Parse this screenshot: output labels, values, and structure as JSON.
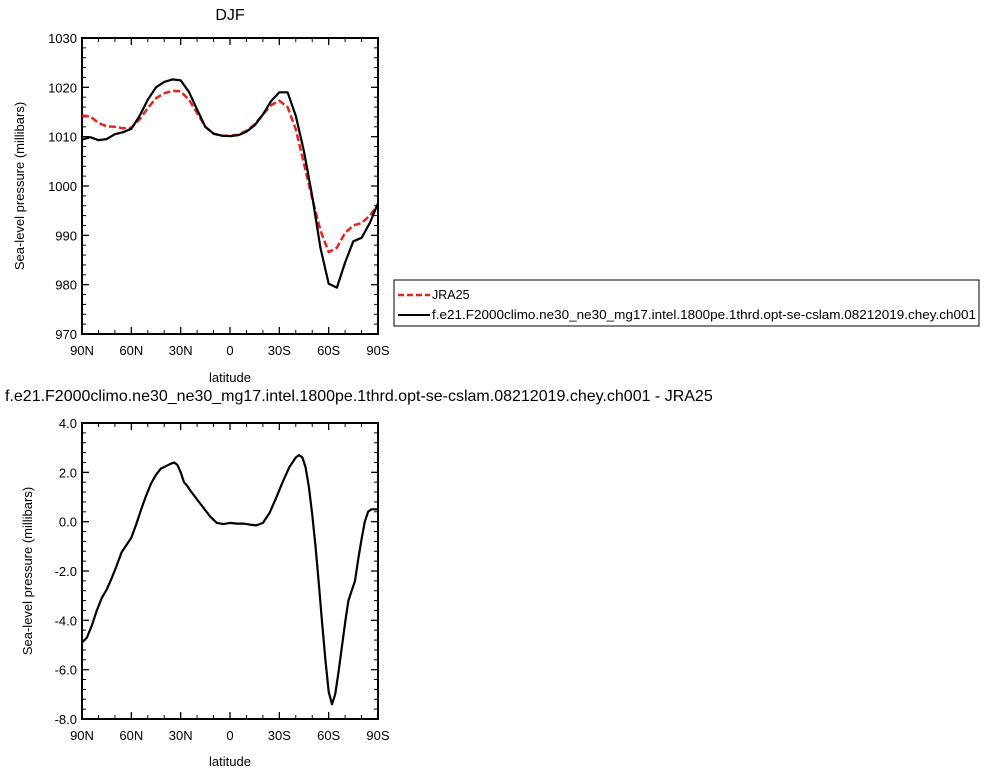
{
  "chart_data": [
    {
      "type": "line",
      "title": "DJF",
      "xlabel": "latitude",
      "ylabel": "Sea-level pressure (millibars)",
      "xlim": [
        90,
        -90
      ],
      "ylim": [
        970,
        1030
      ],
      "x_ticks": [
        90,
        60,
        30,
        0,
        -30,
        -60,
        -90
      ],
      "x_tick_labels": [
        "90N",
        "60N",
        "30N",
        "0",
        "30S",
        "60S",
        "90S"
      ],
      "y_ticks": [
        970,
        980,
        990,
        1000,
        1010,
        1020,
        1030
      ],
      "y_tick_labels": [
        "970",
        "980",
        "990",
        "1000",
        "1010",
        "1020",
        "1030"
      ],
      "legend_position": "right",
      "series": [
        {
          "name": "JRA25",
          "color": "#e8231e",
          "dash": "dashed",
          "x": [
            90,
            85,
            80,
            75,
            70,
            65,
            60,
            55,
            50,
            45,
            40,
            35,
            30,
            25,
            20,
            15,
            10,
            5,
            0,
            -5,
            -10,
            -15,
            -20,
            -25,
            -30,
            -35,
            -40,
            -45,
            -50,
            -55,
            -60,
            -65,
            -70,
            -75,
            -80,
            -85,
            -90
          ],
          "y": [
            1014.3,
            1014.1,
            1012.8,
            1012.1,
            1012.0,
            1011.7,
            1011.8,
            1013.5,
            1015.8,
            1017.8,
            1018.8,
            1019.3,
            1019.2,
            1017.5,
            1014.8,
            1012.0,
            1010.6,
            1010.2,
            1010.2,
            1010.4,
            1011.2,
            1012.5,
            1014.5,
            1016.4,
            1017.3,
            1016.0,
            1011.5,
            1004.5,
            997.5,
            991.0,
            986.6,
            987.5,
            990.5,
            992.0,
            992.5,
            994.0,
            996.2
          ]
        },
        {
          "name": "f.e21.F2000climo.ne30_ne30_mg17.intel.1800pe.1thrd.opt-se-cslam.08212019.chey.ch001",
          "color": "#000000",
          "dash": "solid",
          "x": [
            90,
            85,
            80,
            75,
            70,
            65,
            60,
            55,
            50,
            45,
            40,
            35,
            30,
            25,
            20,
            15,
            10,
            5,
            0,
            -5,
            -10,
            -15,
            -20,
            -25,
            -30,
            -35,
            -40,
            -45,
            -50,
            -55,
            -60,
            -65,
            -70,
            -75,
            -80,
            -85,
            -90
          ],
          "y": [
            1009.4,
            1009.9,
            1009.3,
            1009.5,
            1010.5,
            1010.9,
            1011.6,
            1014.2,
            1017.5,
            1020.0,
            1021.1,
            1021.6,
            1021.4,
            1019.1,
            1015.5,
            1012.0,
            1010.6,
            1010.2,
            1010.1,
            1010.3,
            1011.0,
            1012.3,
            1014.5,
            1017.2,
            1019.0,
            1019.0,
            1014.2,
            1007.0,
            998.0,
            987.5,
            980.2,
            979.4,
            984.5,
            988.8,
            989.5,
            992.5,
            996.5
          ]
        }
      ]
    },
    {
      "type": "line",
      "title": "f.e21.F2000climo.ne30_ne30_mg17.intel.1800pe.1thrd.opt-se-cslam.08212019.chey.ch001 - JRA25",
      "xlabel": "latitude",
      "ylabel": "Sea-level pressure (millibars)",
      "xlim": [
        90,
        -90
      ],
      "ylim": [
        -8,
        4
      ],
      "x_ticks": [
        90,
        60,
        30,
        0,
        -30,
        -60,
        -90
      ],
      "x_tick_labels": [
        "90N",
        "60N",
        "30N",
        "0",
        "30S",
        "60S",
        "90S"
      ],
      "y_ticks": [
        -8,
        -6,
        -4,
        -2,
        0,
        2,
        4
      ],
      "y_tick_labels": [
        "-8.0",
        "-6.0",
        "-4.0",
        "-2.0",
        "0.0",
        "2.0",
        "4.0"
      ],
      "series": [
        {
          "color": "#000000",
          "dash": "solid",
          "x": [
            90,
            87,
            84,
            81,
            78,
            75,
            72,
            69,
            66,
            63,
            60,
            57,
            54,
            51,
            48,
            45,
            42,
            39,
            36,
            34,
            32,
            30,
            28,
            26,
            24,
            20,
            16,
            12,
            8,
            4,
            0,
            -4,
            -8,
            -12,
            -16,
            -20,
            -24,
            -28,
            -32,
            -36,
            -40,
            -42,
            -44,
            -46,
            -48,
            -50,
            -52,
            -54,
            -56,
            -58,
            -60,
            -62,
            -64,
            -66,
            -68,
            -70,
            -72,
            -74,
            -76,
            -78,
            -80,
            -82,
            -84,
            -86,
            -88,
            -90
          ],
          "y": [
            -4.9,
            -4.7,
            -4.2,
            -3.6,
            -3.1,
            -2.75,
            -2.3,
            -1.8,
            -1.25,
            -0.95,
            -0.65,
            -0.1,
            0.5,
            1.05,
            1.55,
            1.9,
            2.15,
            2.25,
            2.35,
            2.4,
            2.3,
            2.0,
            1.6,
            1.45,
            1.25,
            0.9,
            0.55,
            0.2,
            -0.05,
            -0.1,
            -0.05,
            -0.08,
            -0.08,
            -0.12,
            -0.15,
            -0.05,
            0.35,
            0.95,
            1.6,
            2.2,
            2.6,
            2.7,
            2.6,
            2.2,
            1.4,
            0.3,
            -1.0,
            -2.5,
            -4.1,
            -5.6,
            -6.9,
            -7.4,
            -7.0,
            -6.1,
            -5.1,
            -4.1,
            -3.2,
            -2.8,
            -2.4,
            -1.5,
            -0.7,
            0.0,
            0.4,
            0.5,
            0.5,
            0.5
          ]
        }
      ]
    }
  ]
}
